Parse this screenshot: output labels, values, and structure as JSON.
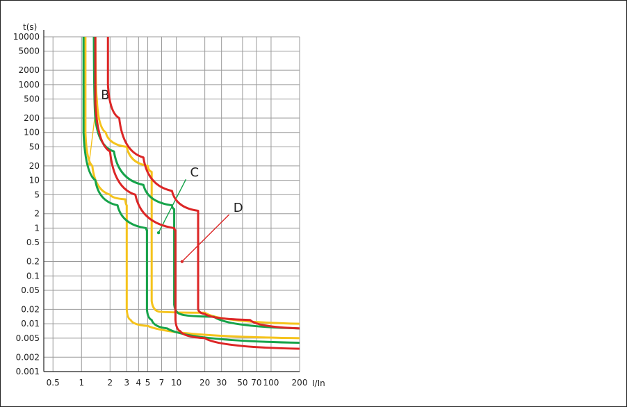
{
  "chart_data": {
    "type": "line",
    "title": "",
    "xlabel": "I/In",
    "ylabel": "t(s)",
    "x_scale": "log",
    "y_scale": "log",
    "xlim": [
      0.4,
      200
    ],
    "ylim": [
      0.001,
      10000
    ],
    "x_ticks": [
      0.5,
      1,
      2,
      3,
      4,
      5,
      7,
      10,
      20,
      30,
      50,
      70,
      100,
      200
    ],
    "x_tick_labels": [
      "0.5",
      "1",
      "2",
      "3",
      "4",
      "5",
      "7",
      "10",
      "20",
      "30",
      "50",
      "70",
      "100",
      "200"
    ],
    "y_ticks": [
      10000,
      5000,
      2000,
      1000,
      500,
      200,
      100,
      50,
      20,
      10,
      5,
      2,
      1,
      0.5,
      0.2,
      0.1,
      0.05,
      0.02,
      0.01,
      0.005,
      0.002,
      0.001
    ],
    "y_tick_labels": [
      "10000",
      "5000",
      "2000",
      "1000",
      "500",
      "200",
      "100",
      "50",
      "20",
      "10",
      "5",
      "2",
      "1",
      "0.5",
      "0.2",
      "0.1",
      "0.05",
      "0.02",
      "0.01",
      "0.005",
      "0.002",
      "0.001"
    ],
    "grid": true,
    "series": [
      {
        "name": "B",
        "color": "#f5c31c",
        "label_at": [
          1.6,
          500
        ],
        "pointer_to": [
          1.2,
          22
        ],
        "min": [
          [
            1.1,
            10000
          ],
          [
            1.1,
            100
          ],
          [
            1.3,
            20
          ],
          [
            2.0,
            5
          ],
          [
            2.9,
            4
          ],
          [
            3.0,
            3
          ],
          [
            3.0,
            0.02
          ],
          [
            3.3,
            0.012
          ],
          [
            5.0,
            0.009
          ],
          [
            200,
            0.005
          ]
        ],
        "max": [
          [
            1.4,
            10000
          ],
          [
            1.45,
            500
          ],
          [
            1.8,
            100
          ],
          [
            3.0,
            50
          ],
          [
            5.0,
            20
          ],
          [
            5.5,
            15
          ],
          [
            5.5,
            0.03
          ],
          [
            6.5,
            0.018
          ],
          [
            20,
            0.017
          ],
          [
            200,
            0.01
          ]
        ]
      },
      {
        "name": "C",
        "color": "#16a34a",
        "label_at": [
          14,
          12
        ],
        "pointer_to": [
          6.5,
          0.8
        ],
        "min": [
          [
            1.05,
            10000
          ],
          [
            1.05,
            100
          ],
          [
            1.4,
            10
          ],
          [
            2.4,
            3
          ],
          [
            4.8,
            1
          ],
          [
            4.9,
            0.9
          ],
          [
            4.9,
            0.02
          ],
          [
            5.5,
            0.012
          ],
          [
            8.0,
            0.008
          ],
          [
            200,
            0.004
          ]
        ],
        "max": [
          [
            1.35,
            10000
          ],
          [
            1.4,
            200
          ],
          [
            2.2,
            40
          ],
          [
            4.5,
            8
          ],
          [
            9.0,
            3
          ],
          [
            9.5,
            2.5
          ],
          [
            9.5,
            0.025
          ],
          [
            11,
            0.016
          ],
          [
            25,
            0.014
          ],
          [
            200,
            0.008
          ]
        ]
      },
      {
        "name": "D",
        "color": "#dc2626",
        "label_at": [
          40,
          2.2
        ],
        "pointer_to": [
          11.5,
          0.2
        ],
        "min": [
          [
            1.4,
            10000
          ],
          [
            1.4,
            400
          ],
          [
            2.0,
            40
          ],
          [
            3.7,
            5
          ],
          [
            9.5,
            1
          ],
          [
            9.8,
            0.9
          ],
          [
            9.8,
            0.012
          ],
          [
            11,
            0.007
          ],
          [
            20,
            0.005
          ],
          [
            200,
            0.003
          ]
        ],
        "max": [
          [
            1.9,
            10000
          ],
          [
            1.9,
            1000
          ],
          [
            2.5,
            200
          ],
          [
            4.5,
            30
          ],
          [
            9.0,
            6
          ],
          [
            17,
            2.3
          ],
          [
            17,
            0.02
          ],
          [
            20,
            0.016
          ],
          [
            60,
            0.012
          ],
          [
            200,
            0.008
          ]
        ]
      }
    ]
  }
}
